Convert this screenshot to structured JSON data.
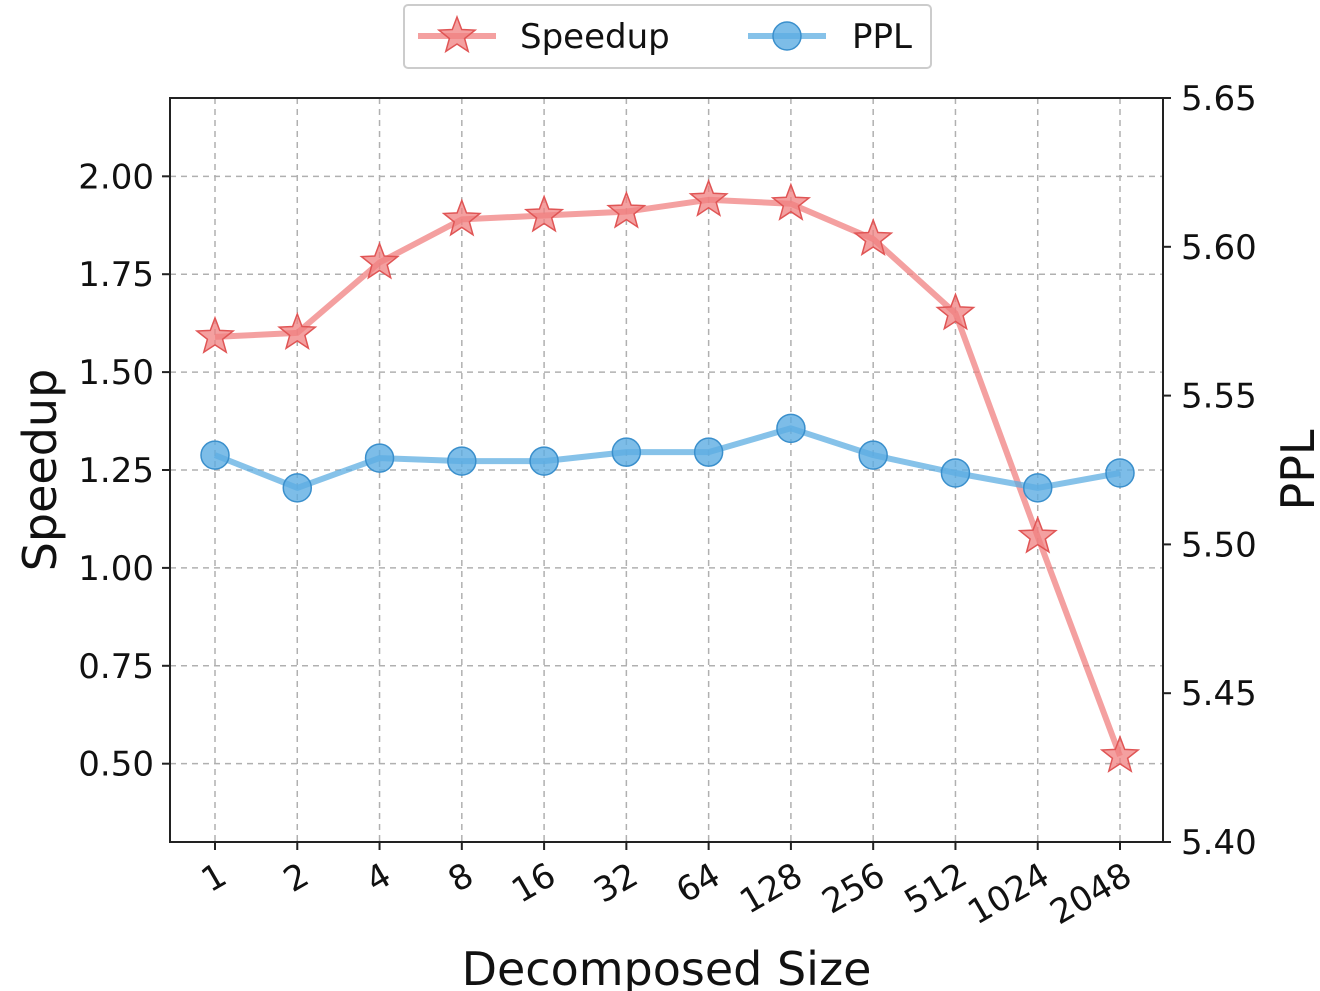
{
  "chart_data": {
    "type": "line",
    "xlabel": "Decomposed Size",
    "ylabel_left": "Speedup",
    "ylabel_right": "PPL",
    "categories": [
      "1",
      "2",
      "4",
      "8",
      "16",
      "32",
      "64",
      "128",
      "256",
      "512",
      "1024",
      "2048"
    ],
    "ylim_left": [
      0.3,
      2.2
    ],
    "ylim_right": [
      5.4,
      5.65
    ],
    "yticks_left": [
      "0.50",
      "0.75",
      "1.00",
      "1.25",
      "1.50",
      "1.75",
      "2.00"
    ],
    "yticks_right": [
      "5.40",
      "5.45",
      "5.50",
      "5.55",
      "5.60",
      "5.65"
    ],
    "grid": true,
    "legend_position": "top-center",
    "series": [
      {
        "name": "Speedup",
        "axis": "left",
        "marker": "star",
        "color": "#f08080",
        "values": [
          1.59,
          1.6,
          1.78,
          1.89,
          1.9,
          1.91,
          1.94,
          1.93,
          1.84,
          1.65,
          1.08,
          0.52
        ]
      },
      {
        "name": "PPL",
        "axis": "right",
        "marker": "circle",
        "color": "#5dade2",
        "values": [
          5.53,
          5.519,
          5.529,
          5.528,
          5.528,
          5.531,
          5.531,
          5.539,
          5.53,
          5.524,
          5.519,
          5.524
        ]
      }
    ]
  }
}
